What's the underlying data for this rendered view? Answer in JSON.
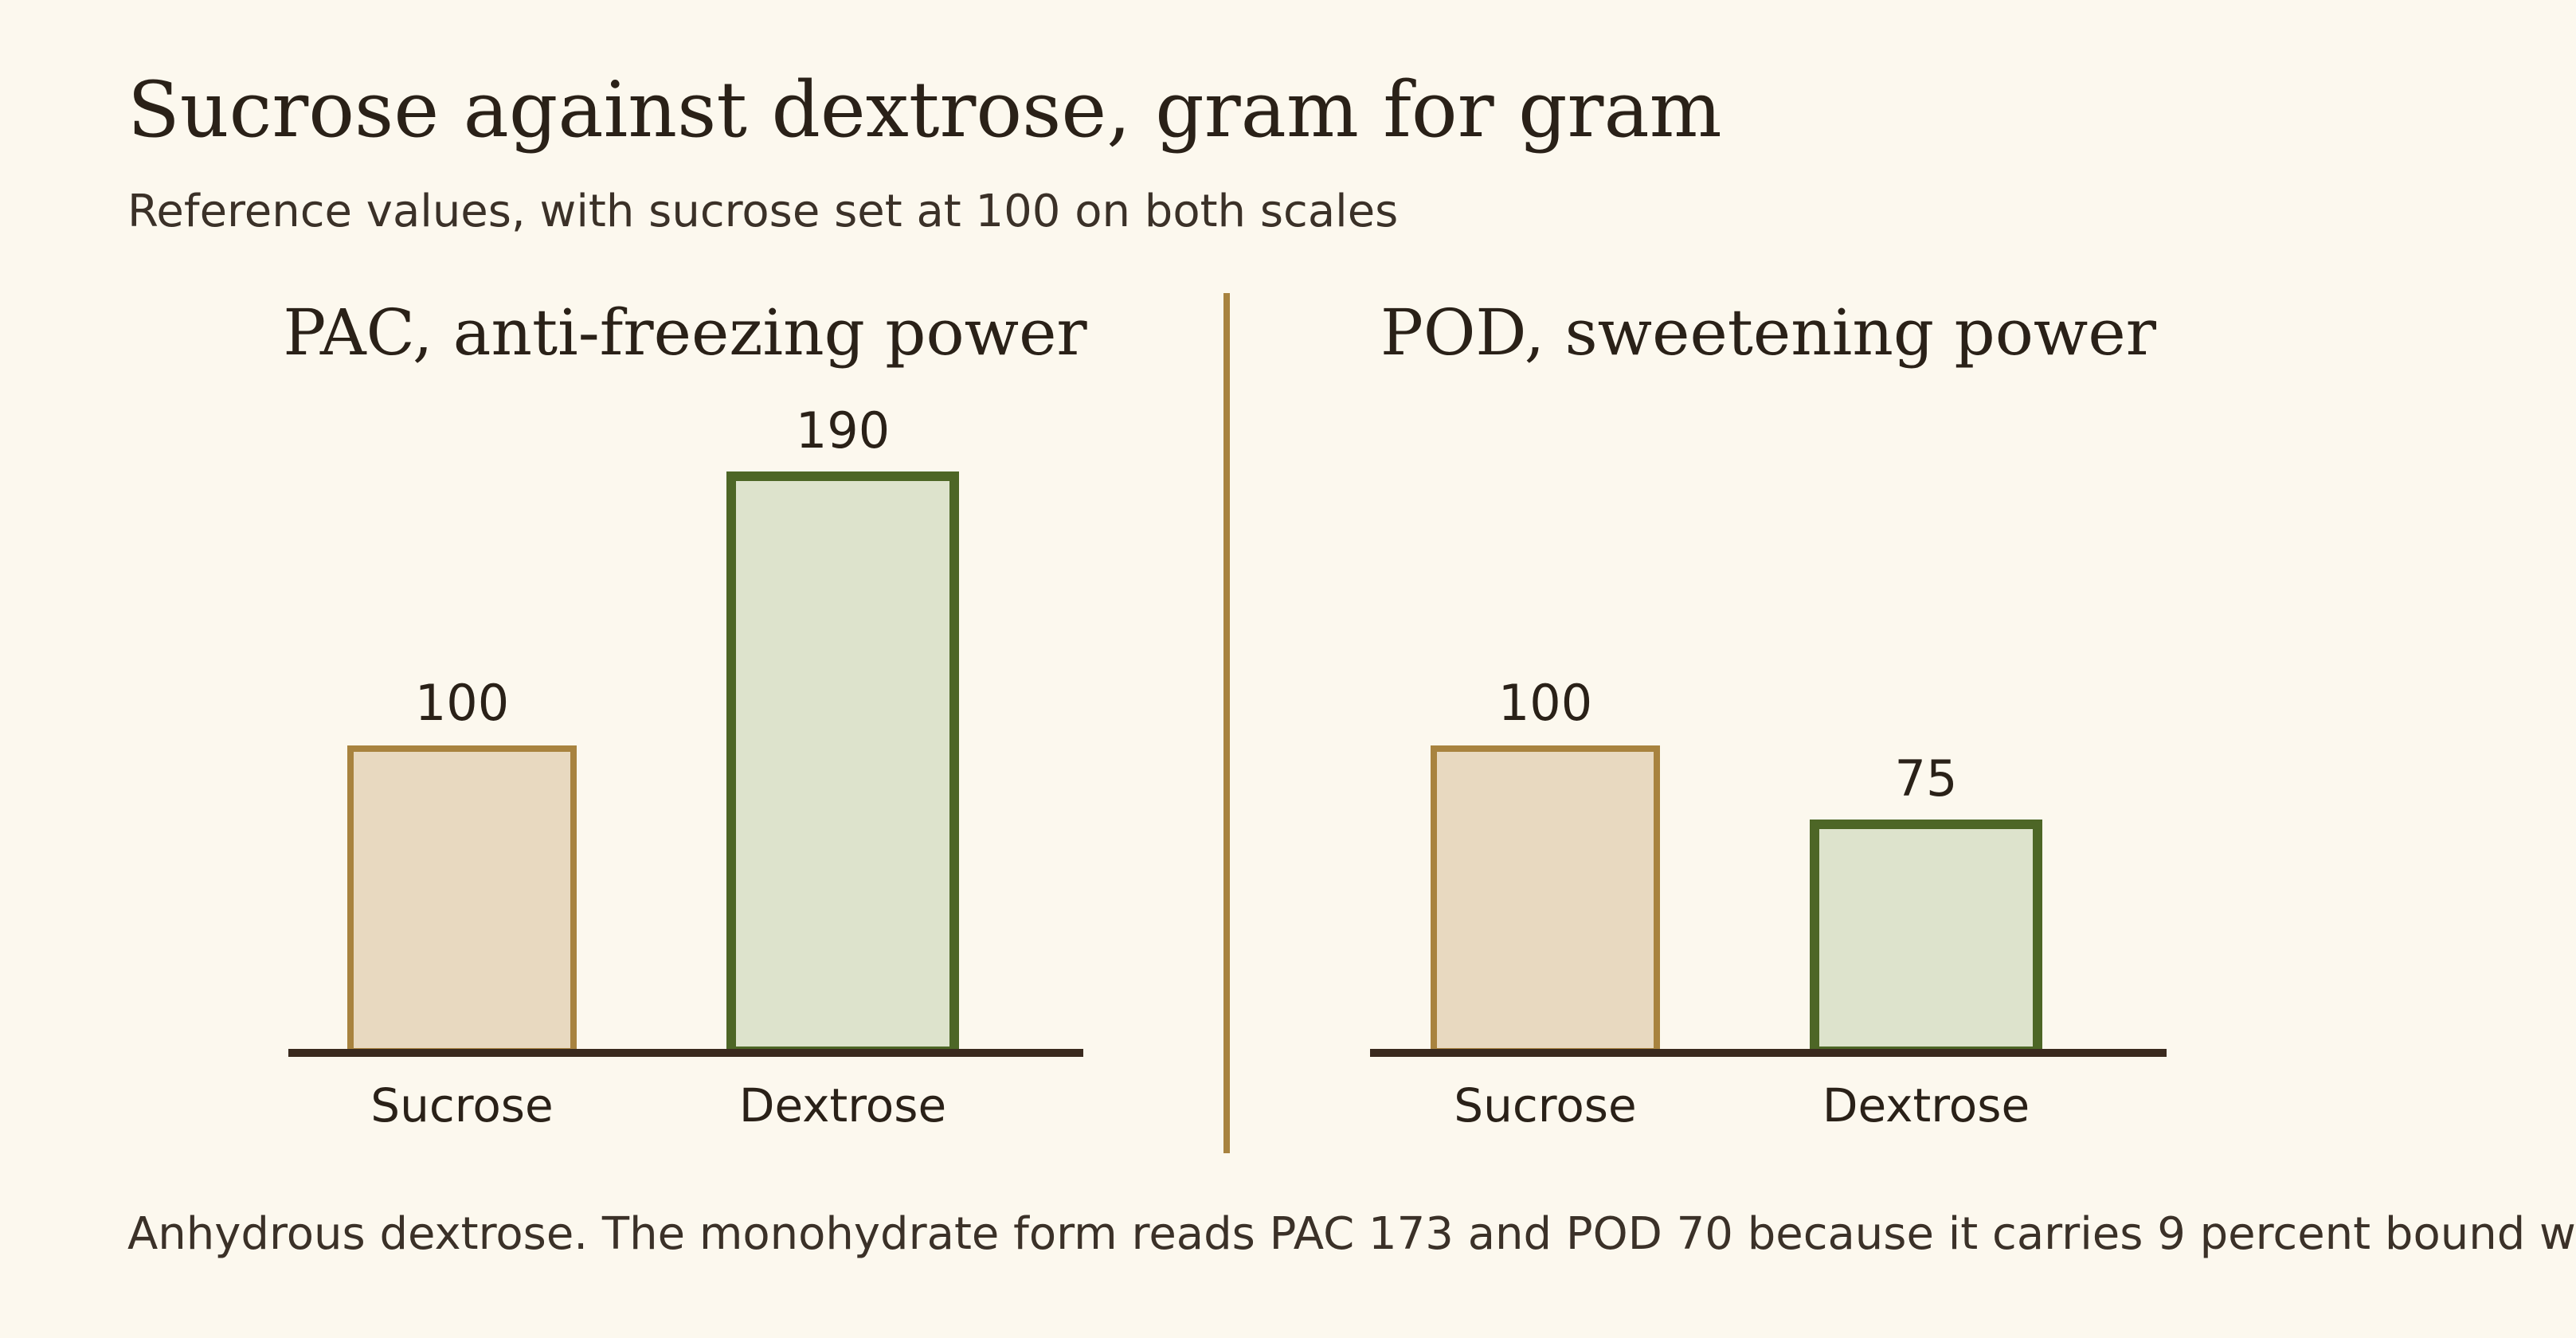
{
  "title": "Sucrose against dextrose, gram for gram",
  "subtitle": "Reference values, with sucrose set at 100 on both scales",
  "footnote": "Anhydrous dextrose. The monohydrate form reads PAC 173 and POD 70 because it carries 9 percent bound w",
  "colors": {
    "background": "#fcf8ee",
    "sucrose_fill": "#e8d9c0",
    "sucrose_stroke": "#a8833f",
    "dextrose_fill": "#dde3cc",
    "dextrose_stroke": "#4d6626",
    "baseline": "#3a2a1e",
    "divider": "#a8833f"
  },
  "chart_data": [
    {
      "type": "bar",
      "title": "PAC, anti-freezing power",
      "categories": [
        "Sucrose",
        "Dextrose"
      ],
      "values": [
        100,
        190
      ],
      "value_labels": [
        "100",
        "190"
      ],
      "ylim": [
        0,
        190
      ]
    },
    {
      "type": "bar",
      "title": "POD, sweetening power",
      "categories": [
        "Sucrose",
        "Dextrose"
      ],
      "values": [
        100,
        75
      ],
      "value_labels": [
        "100",
        "75"
      ],
      "ylim": [
        0,
        190
      ]
    }
  ]
}
